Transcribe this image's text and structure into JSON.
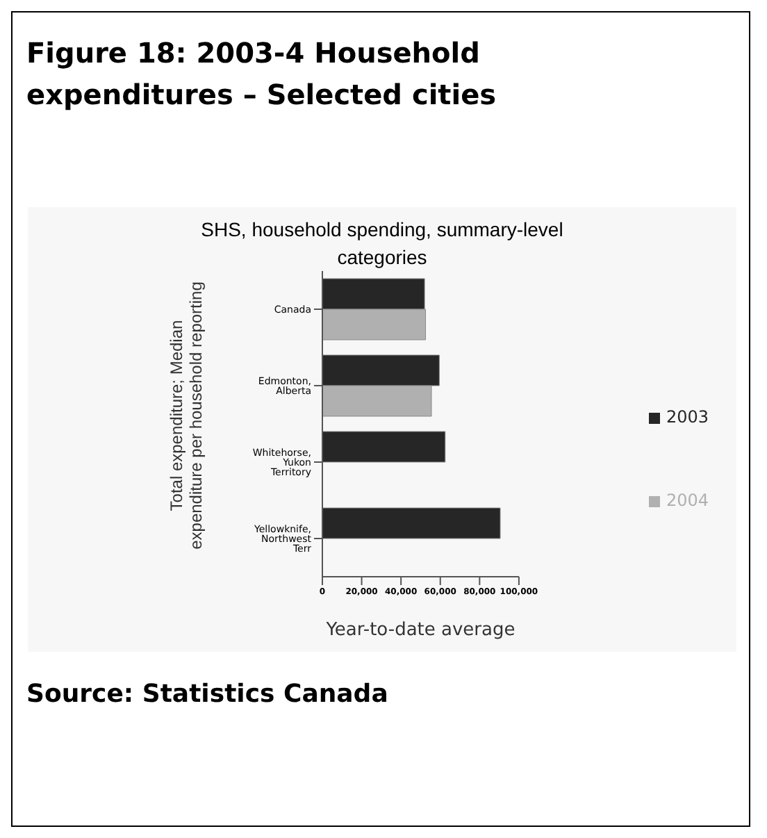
{
  "chart_data": {
    "type": "bar",
    "orientation": "horizontal",
    "title": "SHS, household spending, summary-level categories",
    "xlabel": "Year-to-date average",
    "ylabel": "Total expenditure; Median expenditure per household reporting",
    "annotations": [
      "Figure 18: 2003-4 Household expenditures – Selected cities",
      "Source: Statistics Canada"
    ],
    "categories": [
      "Canada",
      "Edmonton, Alberta",
      "Whitehorse, Yukon Territory",
      "Yellowknife, Northwest Terr"
    ],
    "series": [
      {
        "name": "2003",
        "color": "#262626",
        "values": [
          52000,
          59500,
          62500,
          90500
        ]
      },
      {
        "name": "2004",
        "color": "#b0b0b0",
        "values": [
          52500,
          55500,
          null,
          null
        ]
      }
    ],
    "xlim": [
      0,
      100000
    ],
    "xticks": [
      {
        "value": 0,
        "label": "0"
      },
      {
        "value": 20000,
        "label": "20,000"
      },
      {
        "value": 40000,
        "label": "40,000"
      },
      {
        "value": 60000,
        "label": "60,000"
      },
      {
        "value": 80000,
        "label": "80,000"
      },
      {
        "value": 100000,
        "label": "100,000"
      }
    ],
    "grid": false,
    "legend": "right"
  }
}
